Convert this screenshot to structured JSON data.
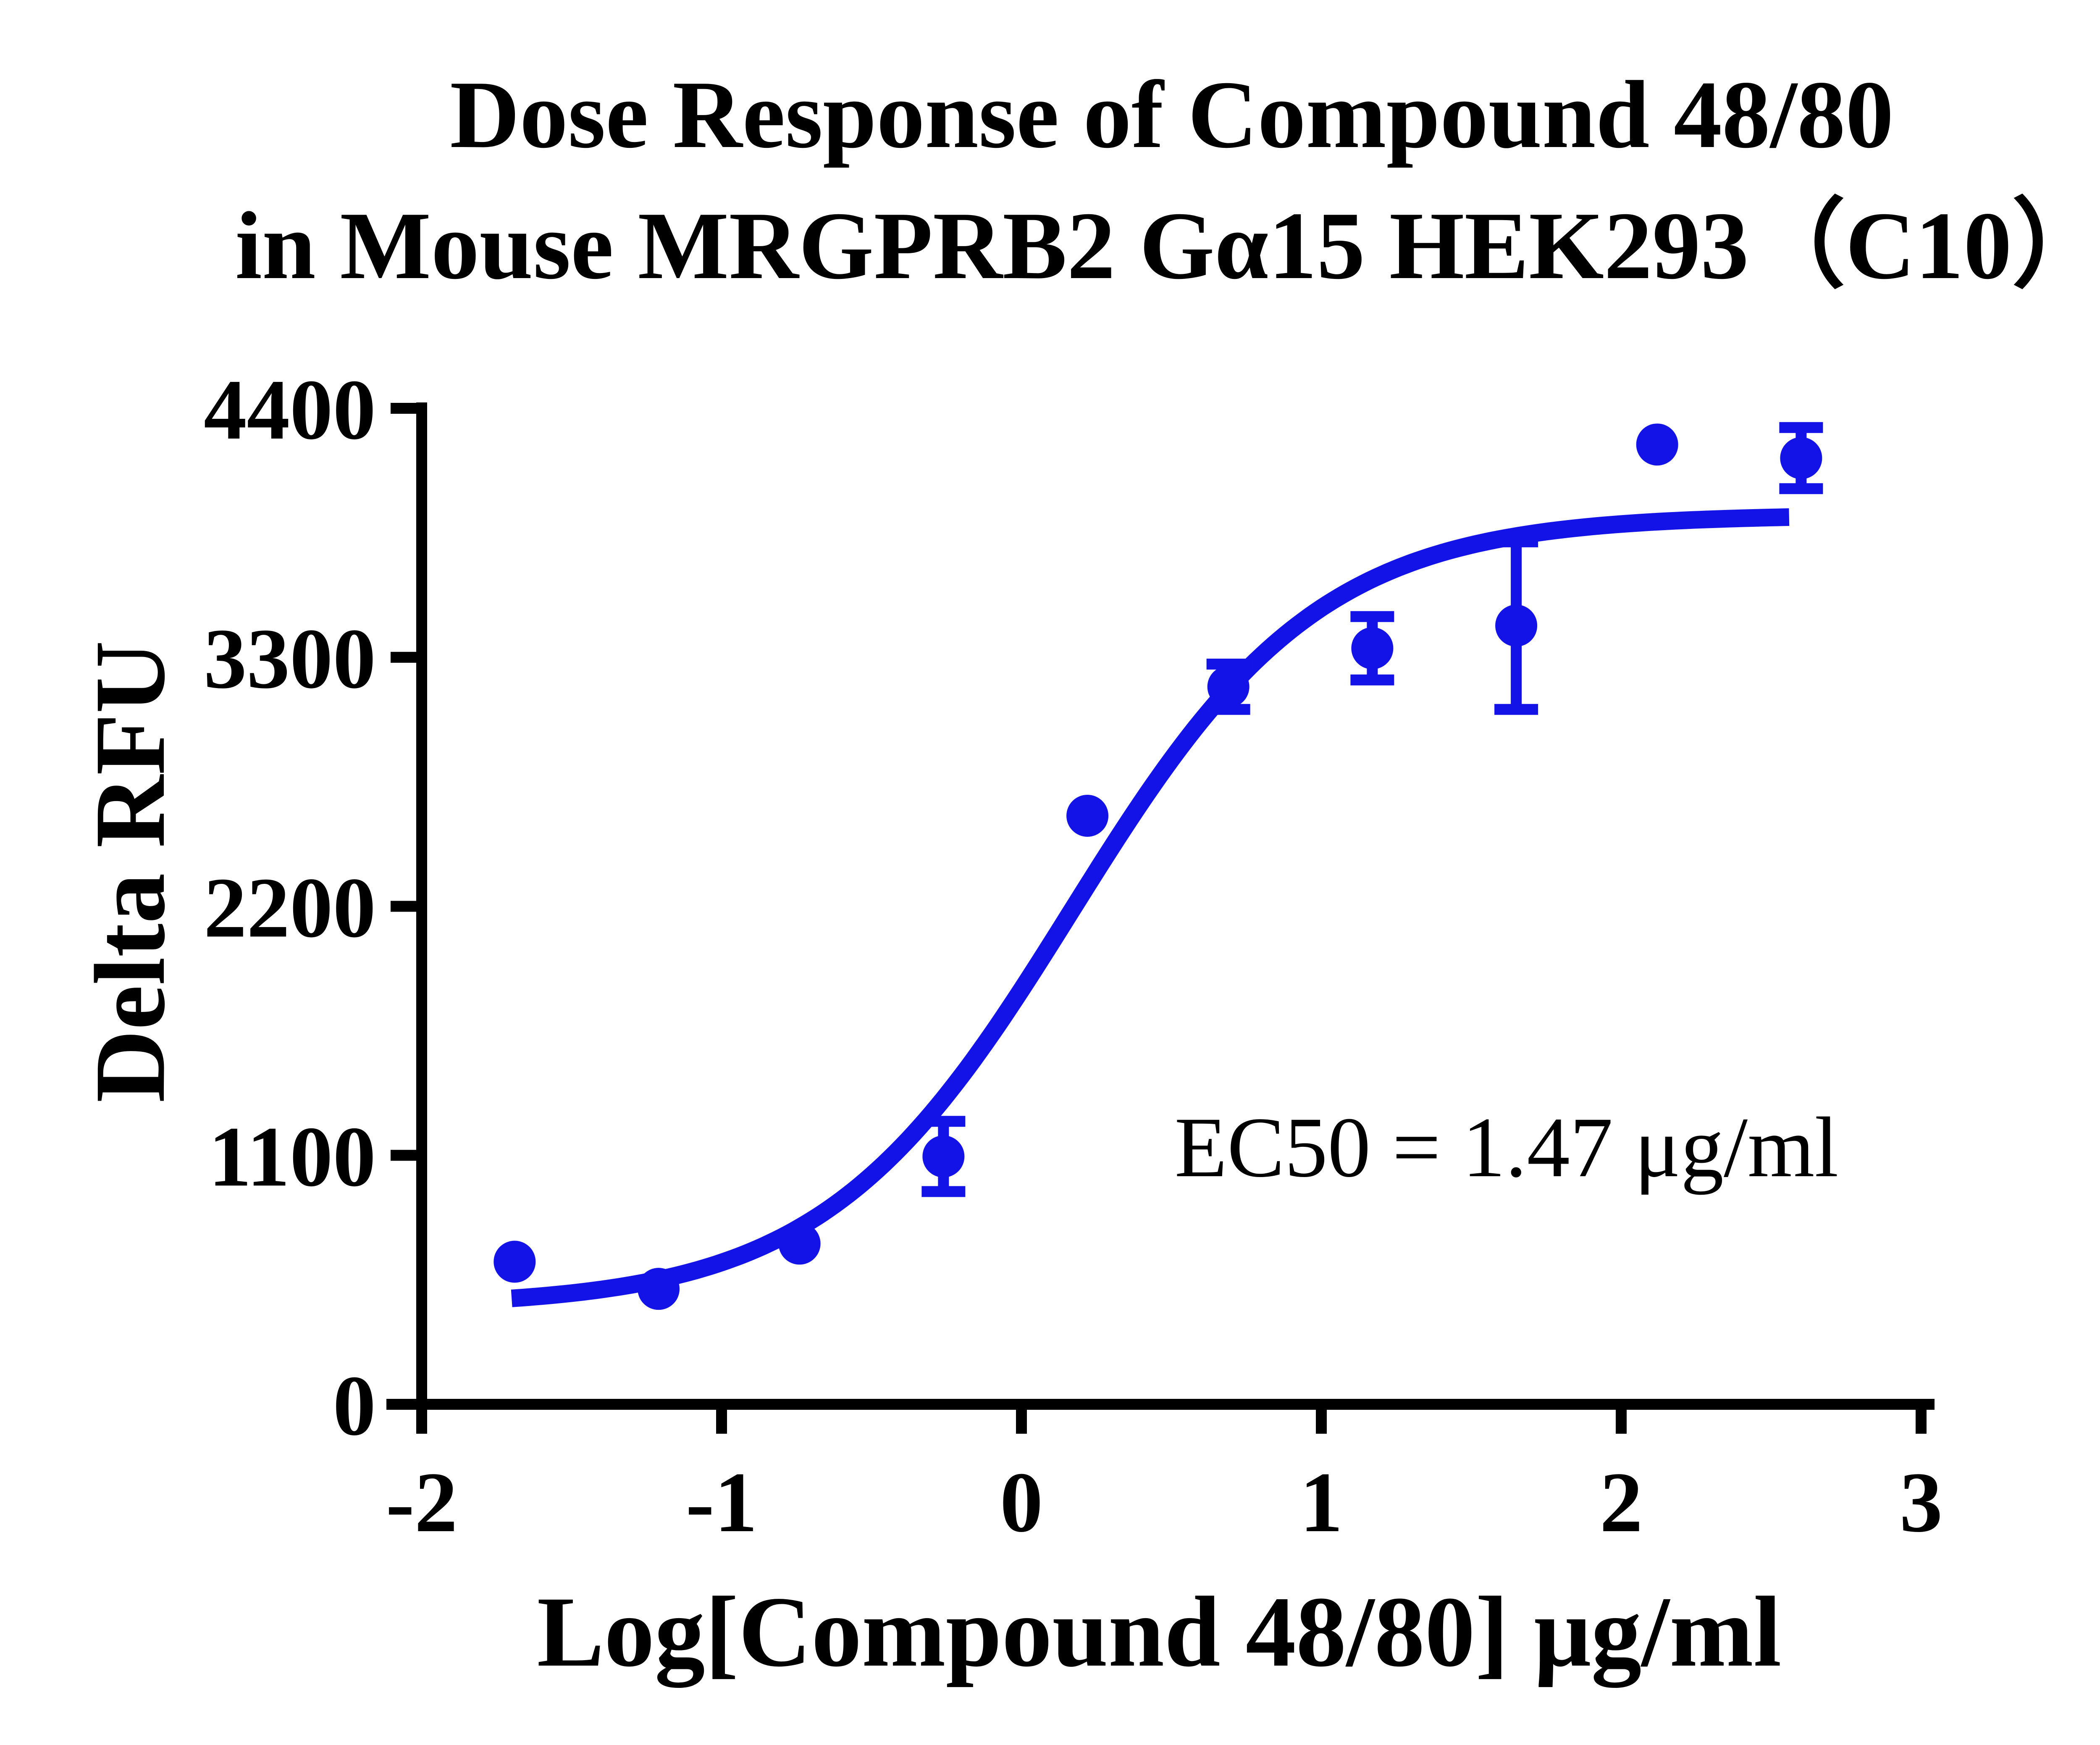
{
  "title": {
    "line1": "Dose Response of Compound 48/80",
    "line2": "in Mouse MRGPRB2 Gα15 HEK293（C10）"
  },
  "annotation": {
    "label": "EC50 = 1.47 μg/ml"
  },
  "axes": {
    "x_label": "Log[Compound 48/80] μg/ml",
    "y_label": "Delta RFU"
  },
  "chart_data": {
    "type": "scatter",
    "title": "Dose Response of Compound 48/80 in Mouse MRGPRB2 Gα15 HEK293（C10）",
    "xlabel": "Log[Compound 48/80] μg/ml",
    "ylabel": "Delta RFU",
    "xlim": [
      -2,
      3
    ],
    "ylim": [
      0,
      4400
    ],
    "x_ticks": [
      -2,
      -1,
      0,
      1,
      2,
      3
    ],
    "y_ticks": [
      0,
      1100,
      2200,
      3300,
      4400
    ],
    "grid": false,
    "legend": "none",
    "marker_color": "#1313e8",
    "axis_color": "#000000",
    "ec50_ug_ml": 1.47,
    "points": [
      {
        "x": -1.69,
        "y": 630,
        "err": 0
      },
      {
        "x": -1.21,
        "y": 510,
        "err": 0
      },
      {
        "x": -0.74,
        "y": 710,
        "err": 0
      },
      {
        "x": -0.26,
        "y": 1095,
        "err": 155
      },
      {
        "x": 0.22,
        "y": 2600,
        "err": 0
      },
      {
        "x": 0.69,
        "y": 3170,
        "err": 100
      },
      {
        "x": 1.17,
        "y": 3340,
        "err": 140
      },
      {
        "x": 1.65,
        "y": 3440,
        "err": 370
      },
      {
        "x": 2.12,
        "y": 4240,
        "err": 0
      },
      {
        "x": 2.6,
        "y": 4180,
        "err": 135
      }
    ],
    "fit_curve": {
      "model": "four_parameter_logistic",
      "bottom": 430,
      "top": 3930,
      "log_ec50": 0.167,
      "hill_slope": 1.05,
      "x_start": -1.7,
      "x_end": 2.56
    }
  }
}
